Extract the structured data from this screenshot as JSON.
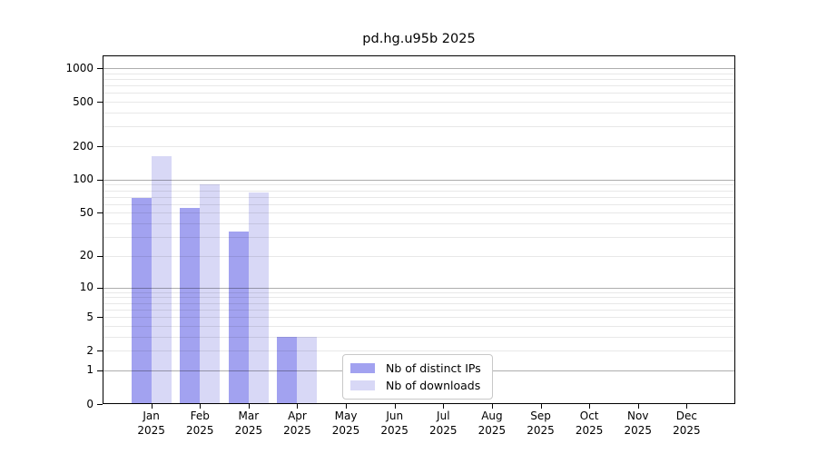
{
  "chart_data": {
    "type": "bar",
    "title": "pd.hg.u95b 2025",
    "categories": [
      "Jan 2025",
      "Feb 2025",
      "Mar 2025",
      "Apr 2025",
      "May 2025",
      "Jun 2025",
      "Jul 2025",
      "Aug 2025",
      "Sep 2025",
      "Oct 2025",
      "Nov 2025",
      "Dec 2025"
    ],
    "series": [
      {
        "name": "Nb of distinct IPs",
        "color": "#a2a2f0",
        "values": [
          68,
          55,
          34,
          3,
          0,
          0,
          0,
          0,
          0,
          0,
          0,
          0
        ]
      },
      {
        "name": "Nb of downloads",
        "color": "#d8d8f6",
        "values": [
          163,
          90,
          77,
          3,
          0,
          0,
          0,
          0,
          0,
          0,
          0,
          0
        ]
      }
    ],
    "y_scale": "log10(value+1)",
    "y_ticks": [
      0,
      1,
      2,
      5,
      10,
      20,
      50,
      100,
      200,
      500,
      1000
    ],
    "ylim": [
      0,
      1300
    ],
    "grid": {
      "major_lines": [
        1,
        10,
        100,
        1000
      ],
      "minor_lines": [
        2,
        3,
        4,
        5,
        6,
        7,
        8,
        9,
        20,
        30,
        40,
        50,
        60,
        70,
        80,
        90,
        200,
        300,
        400,
        500,
        600,
        700,
        800,
        900
      ]
    },
    "legend_position": "bottom-center",
    "colors": {
      "grid_major": "rgba(0,0,0,0.32)",
      "grid_minor": "rgba(0,0,0,0.09)",
      "axis": "#000000",
      "legend_border": "#c8c8c8"
    }
  }
}
